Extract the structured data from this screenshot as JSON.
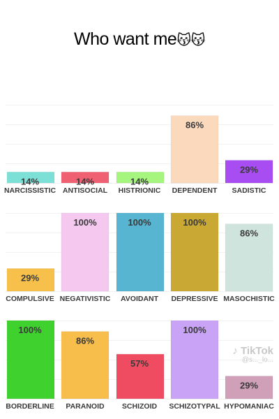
{
  "caption": {
    "text": "Who want me",
    "emoji": "😽😽"
  },
  "watermark": {
    "brand": "TikTok",
    "handle": "@s..._lo..."
  },
  "chart_data": [
    {
      "type": "bar",
      "categories": [
        "NARCISSISTIC",
        "ANTISOCIAL",
        "HISTRIONIC",
        "DEPENDENT",
        "SADISTIC"
      ],
      "values": [
        14,
        14,
        14,
        86,
        29
      ],
      "value_labels": [
        "14%",
        "14%",
        "14%",
        "86%",
        "29%"
      ],
      "colors": [
        "#7de0d6",
        "#ef6072",
        "#a5f57e",
        "#fbd9bd",
        "#a74df2"
      ],
      "ylim": [
        0,
        100
      ]
    },
    {
      "type": "bar",
      "categories": [
        "COMPULSIVE",
        "NEGATIVISTIC",
        "AVOIDANT",
        "DEPRESSIVE",
        "MASOCHISTIC"
      ],
      "values": [
        29,
        100,
        100,
        100,
        86
      ],
      "value_labels": [
        "29%",
        "100%",
        "100%",
        "100%",
        "86%"
      ],
      "colors": [
        "#f6c04a",
        "#f5c8ef",
        "#57b5d2",
        "#c9a933",
        "#cfe4dc"
      ],
      "ylim": [
        0,
        100
      ]
    },
    {
      "type": "bar",
      "categories": [
        "BORDERLINE",
        "PARANOID",
        "SCHIZOID",
        "SCHIZOTYPAL",
        "HYPOMANIAC"
      ],
      "values": [
        100,
        86,
        57,
        100,
        29
      ],
      "value_labels": [
        "100%",
        "86%",
        "57%",
        "100%",
        "29%"
      ],
      "colors": [
        "#3fd12e",
        "#f7be4c",
        "#ef4c62",
        "#c9a3f6",
        "#cfa0b7"
      ],
      "ylim": [
        0,
        100
      ]
    }
  ]
}
